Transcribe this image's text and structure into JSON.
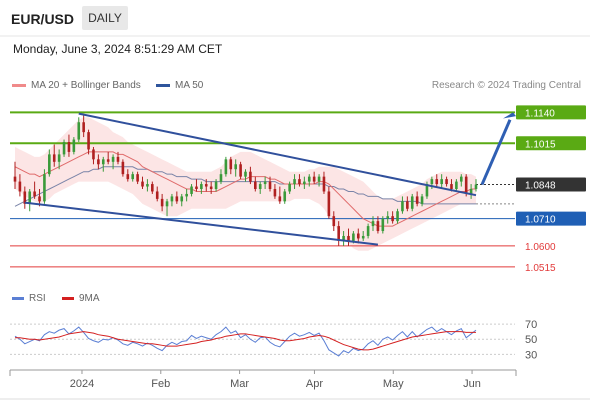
{
  "header": {
    "symbol": "EUR/USD",
    "timeframe": "DAILY"
  },
  "timestamp": "Monday, June 3, 2024 8:51:29 AM CET",
  "legend": {
    "ma20": "MA 20 + Bollinger Bands",
    "ma50": "MA 50",
    "credit": "Research © 2024 Trading Central"
  },
  "rsi_legend": {
    "rsi": "RSI",
    "ma9": "9MA"
  },
  "colors": {
    "green": "#5aaa14",
    "blue": "#1f5fb5",
    "red": "#e23a3a",
    "dark": "#333333",
    "trendline": "#30509c"
  },
  "chart_data": [
    {
      "type": "candlestick",
      "x_ticks": [
        "2024",
        "Feb",
        "Mar",
        "Apr",
        "May",
        "Jun"
      ],
      "levels": [
        {
          "label": "1.1140",
          "value": 1.114,
          "color": "#5aaa14",
          "style": "resistance"
        },
        {
          "label": "1.1015",
          "value": 1.1015,
          "color": "#5aaa14",
          "style": "resistance"
        },
        {
          "label": "1.0848",
          "value": 1.0848,
          "color": "#333333",
          "style": "last"
        },
        {
          "label": "1.0710",
          "value": 1.071,
          "color": "#1f5fb5",
          "style": "pivot"
        },
        {
          "label": "1.0600",
          "value": 1.06,
          "color": "#e23a3a",
          "style": "support"
        },
        {
          "label": "1.0515",
          "value": 1.0515,
          "color": "#e23a3a",
          "style": "support"
        }
      ],
      "ylim": [
        1.047,
        1.119
      ],
      "candles": [
        [
          1.088,
          1.094,
          1.083,
          1.086
        ],
        [
          1.086,
          1.089,
          1.08,
          1.082
        ],
        [
          1.082,
          1.084,
          1.075,
          1.077
        ],
        [
          1.077,
          1.083,
          1.074,
          1.082
        ],
        [
          1.082,
          1.086,
          1.079,
          1.08
        ],
        [
          1.08,
          1.083,
          1.076,
          1.078
        ],
        [
          1.078,
          1.091,
          1.077,
          1.089
        ],
        [
          1.089,
          1.099,
          1.088,
          1.097
        ],
        [
          1.097,
          1.101,
          1.092,
          1.094
        ],
        [
          1.094,
          1.099,
          1.091,
          1.097
        ],
        [
          1.097,
          1.103,
          1.096,
          1.102
        ],
        [
          1.102,
          1.105,
          1.096,
          1.098
        ],
        [
          1.098,
          1.104,
          1.097,
          1.103
        ],
        [
          1.103,
          1.112,
          1.102,
          1.11
        ],
        [
          1.11,
          1.113,
          1.104,
          1.106
        ],
        [
          1.106,
          1.107,
          1.097,
          1.099
        ],
        [
          1.099,
          1.1,
          1.093,
          1.095
        ],
        [
          1.095,
          1.097,
          1.091,
          1.093
        ],
        [
          1.093,
          1.096,
          1.09,
          1.095
        ],
        [
          1.095,
          1.098,
          1.093,
          1.094
        ],
        [
          1.094,
          1.097,
          1.091,
          1.096
        ],
        [
          1.096,
          1.098,
          1.093,
          1.094
        ],
        [
          1.094,
          1.095,
          1.088,
          1.089
        ],
        [
          1.089,
          1.091,
          1.086,
          1.087
        ],
        [
          1.087,
          1.09,
          1.086,
          1.089
        ],
        [
          1.089,
          1.09,
          1.085,
          1.086
        ],
        [
          1.086,
          1.088,
          1.083,
          1.084
        ],
        [
          1.084,
          1.087,
          1.082,
          1.085
        ],
        [
          1.085,
          1.086,
          1.081,
          1.082
        ],
        [
          1.082,
          1.084,
          1.078,
          1.079
        ],
        [
          1.079,
          1.081,
          1.074,
          1.076
        ],
        [
          1.076,
          1.079,
          1.072,
          1.078
        ],
        [
          1.078,
          1.081,
          1.076,
          1.08
        ],
        [
          1.08,
          1.082,
          1.077,
          1.078
        ],
        [
          1.078,
          1.081,
          1.076,
          1.08
        ],
        [
          1.08,
          1.083,
          1.078,
          1.081
        ],
        [
          1.081,
          1.085,
          1.08,
          1.084
        ],
        [
          1.084,
          1.087,
          1.082,
          1.083
        ],
        [
          1.083,
          1.086,
          1.081,
          1.085
        ],
        [
          1.085,
          1.087,
          1.082,
          1.084
        ],
        [
          1.084,
          1.086,
          1.081,
          1.083
        ],
        [
          1.083,
          1.087,
          1.082,
          1.086
        ],
        [
          1.086,
          1.091,
          1.085,
          1.089
        ],
        [
          1.089,
          1.096,
          1.088,
          1.095
        ],
        [
          1.095,
          1.096,
          1.089,
          1.091
        ],
        [
          1.091,
          1.095,
          1.088,
          1.093
        ],
        [
          1.093,
          1.094,
          1.087,
          1.088
        ],
        [
          1.088,
          1.091,
          1.086,
          1.09
        ],
        [
          1.09,
          1.092,
          1.085,
          1.086
        ],
        [
          1.086,
          1.088,
          1.082,
          1.083
        ],
        [
          1.083,
          1.086,
          1.081,
          1.085
        ],
        [
          1.085,
          1.088,
          1.083,
          1.086
        ],
        [
          1.086,
          1.088,
          1.082,
          1.083
        ],
        [
          1.083,
          1.085,
          1.079,
          1.08
        ],
        [
          1.08,
          1.084,
          1.077,
          1.078
        ],
        [
          1.078,
          1.083,
          1.077,
          1.082
        ],
        [
          1.082,
          1.086,
          1.081,
          1.085
        ],
        [
          1.085,
          1.089,
          1.083,
          1.087
        ],
        [
          1.087,
          1.089,
          1.084,
          1.085
        ],
        [
          1.085,
          1.088,
          1.083,
          1.086
        ],
        [
          1.086,
          1.089,
          1.084,
          1.088
        ],
        [
          1.088,
          1.09,
          1.085,
          1.086
        ],
        [
          1.086,
          1.089,
          1.084,
          1.088
        ],
        [
          1.088,
          1.09,
          1.081,
          1.082
        ],
        [
          1.082,
          1.084,
          1.071,
          1.072
        ],
        [
          1.072,
          1.074,
          1.066,
          1.068
        ],
        [
          1.068,
          1.07,
          1.06,
          1.062
        ],
        [
          1.062,
          1.066,
          1.06,
          1.064
        ],
        [
          1.064,
          1.067,
          1.06,
          1.062
        ],
        [
          1.062,
          1.066,
          1.061,
          1.065
        ],
        [
          1.065,
          1.067,
          1.061,
          1.063
        ],
        [
          1.063,
          1.066,
          1.062,
          1.064
        ],
        [
          1.064,
          1.069,
          1.063,
          1.068
        ],
        [
          1.068,
          1.072,
          1.066,
          1.07
        ],
        [
          1.07,
          1.072,
          1.065,
          1.066
        ],
        [
          1.066,
          1.072,
          1.065,
          1.071
        ],
        [
          1.071,
          1.074,
          1.069,
          1.072
        ],
        [
          1.072,
          1.074,
          1.069,
          1.07
        ],
        [
          1.07,
          1.075,
          1.069,
          1.074
        ],
        [
          1.074,
          1.08,
          1.073,
          1.078
        ],
        [
          1.078,
          1.08,
          1.074,
          1.075
        ],
        [
          1.075,
          1.081,
          1.074,
          1.08
        ],
        [
          1.08,
          1.082,
          1.076,
          1.077
        ],
        [
          1.077,
          1.081,
          1.076,
          1.08
        ],
        [
          1.08,
          1.086,
          1.079,
          1.085
        ],
        [
          1.085,
          1.088,
          1.083,
          1.087
        ],
        [
          1.087,
          1.089,
          1.084,
          1.085
        ],
        [
          1.085,
          1.089,
          1.083,
          1.087
        ],
        [
          1.087,
          1.088,
          1.084,
          1.085
        ],
        [
          1.085,
          1.087,
          1.082,
          1.083
        ],
        [
          1.083,
          1.087,
          1.082,
          1.086
        ],
        [
          1.086,
          1.089,
          1.084,
          1.088
        ],
        [
          1.088,
          1.089,
          1.08,
          1.081
        ],
        [
          1.081,
          1.085,
          1.079,
          1.083
        ],
        [
          1.083,
          1.087,
          1.082,
          1.0848
        ]
      ],
      "ma20": [
        1.092,
        1.091,
        1.09,
        1.089,
        1.089,
        1.088,
        1.089,
        1.09,
        1.091,
        1.092,
        1.093,
        1.094,
        1.095,
        1.096,
        1.097,
        1.098,
        1.098,
        1.098,
        1.098,
        1.098,
        1.098,
        1.097,
        1.097,
        1.096,
        1.095,
        1.094,
        1.092,
        1.091,
        1.09,
        1.089,
        1.088,
        1.087,
        1.086,
        1.085,
        1.084,
        1.083,
        1.083,
        1.082,
        1.082,
        1.082,
        1.082,
        1.082,
        1.083,
        1.084,
        1.085,
        1.086,
        1.087,
        1.087,
        1.088,
        1.088,
        1.088,
        1.088,
        1.087,
        1.087,
        1.086,
        1.085,
        1.085,
        1.085,
        1.085,
        1.085,
        1.085,
        1.085,
        1.086,
        1.086,
        1.085,
        1.083,
        1.081,
        1.079,
        1.077,
        1.075,
        1.073,
        1.071,
        1.07,
        1.069,
        1.068,
        1.068,
        1.068,
        1.068,
        1.069,
        1.07,
        1.071,
        1.072,
        1.073,
        1.074,
        1.075,
        1.076,
        1.077,
        1.078,
        1.079,
        1.08,
        1.081,
        1.082,
        1.082,
        1.083,
        1.083
      ],
      "bb_upper": [
        1.1,
        1.099,
        1.098,
        1.097,
        1.096,
        1.096,
        1.097,
        1.099,
        1.101,
        1.103,
        1.105,
        1.107,
        1.109,
        1.111,
        1.112,
        1.112,
        1.111,
        1.11,
        1.109,
        1.108,
        1.106,
        1.105,
        1.104,
        1.102,
        1.101,
        1.1,
        1.099,
        1.098,
        1.097,
        1.096,
        1.095,
        1.094,
        1.093,
        1.092,
        1.091,
        1.09,
        1.09,
        1.09,
        1.09,
        1.09,
        1.09,
        1.091,
        1.092,
        1.094,
        1.096,
        1.097,
        1.098,
        1.098,
        1.098,
        1.097,
        1.096,
        1.095,
        1.094,
        1.093,
        1.092,
        1.091,
        1.09,
        1.09,
        1.09,
        1.09,
        1.091,
        1.091,
        1.092,
        1.092,
        1.092,
        1.092,
        1.091,
        1.09,
        1.089,
        1.088,
        1.087,
        1.086,
        1.084,
        1.082,
        1.08,
        1.079,
        1.079,
        1.079,
        1.08,
        1.081,
        1.082,
        1.083,
        1.084,
        1.085,
        1.087,
        1.088,
        1.089,
        1.09,
        1.09,
        1.09,
        1.09,
        1.09,
        1.089,
        1.089,
        1.088
      ],
      "bb_lower": [
        1.083,
        1.082,
        1.08,
        1.079,
        1.078,
        1.077,
        1.078,
        1.079,
        1.081,
        1.082,
        1.083,
        1.084,
        1.085,
        1.086,
        1.086,
        1.086,
        1.086,
        1.086,
        1.086,
        1.086,
        1.085,
        1.084,
        1.083,
        1.082,
        1.081,
        1.079,
        1.077,
        1.076,
        1.075,
        1.074,
        1.073,
        1.072,
        1.072,
        1.072,
        1.073,
        1.074,
        1.075,
        1.075,
        1.075,
        1.075,
        1.075,
        1.075,
        1.075,
        1.075,
        1.076,
        1.077,
        1.078,
        1.078,
        1.078,
        1.078,
        1.078,
        1.078,
        1.078,
        1.078,
        1.078,
        1.078,
        1.078,
        1.079,
        1.079,
        1.079,
        1.079,
        1.078,
        1.077,
        1.075,
        1.072,
        1.069,
        1.066,
        1.063,
        1.061,
        1.059,
        1.058,
        1.058,
        1.058,
        1.059,
        1.06,
        1.061,
        1.062,
        1.063,
        1.064,
        1.065,
        1.066,
        1.067,
        1.068,
        1.069,
        1.07,
        1.071,
        1.072,
        1.073,
        1.074,
        1.075,
        1.076,
        1.077,
        1.077,
        1.077,
        1.077
      ],
      "ma50": [
        1.076,
        1.077,
        1.078,
        1.079,
        1.08,
        1.081,
        1.082,
        1.083,
        1.084,
        1.085,
        1.086,
        1.087,
        1.088,
        1.089,
        1.09,
        1.09,
        1.091,
        1.091,
        1.092,
        1.092,
        1.092,
        1.092,
        1.092,
        1.092,
        1.092,
        1.091,
        1.091,
        1.091,
        1.09,
        1.09,
        1.09,
        1.089,
        1.089,
        1.088,
        1.088,
        1.088,
        1.087,
        1.087,
        1.087,
        1.086,
        1.086,
        1.086,
        1.086,
        1.086,
        1.086,
        1.086,
        1.086,
        1.086,
        1.086,
        1.086,
        1.086,
        1.086,
        1.086,
        1.086,
        1.085,
        1.085,
        1.085,
        1.085,
        1.085,
        1.085,
        1.085,
        1.085,
        1.085,
        1.085,
        1.084,
        1.084,
        1.083,
        1.083,
        1.082,
        1.082,
        1.081,
        1.081,
        1.08,
        1.08,
        1.08,
        1.079,
        1.079,
        1.079,
        1.078,
        1.078,
        1.078,
        1.078,
        1.078,
        1.077,
        1.077,
        1.077,
        1.077,
        1.077,
        1.077,
        1.077,
        1.077,
        1.077,
        1.077,
        1.077,
        1.077
      ]
    },
    {
      "type": "line",
      "title": "RSI",
      "y_ticks": [
        70,
        50,
        30
      ],
      "ylim": [
        20,
        78
      ],
      "series": [
        {
          "name": "RSI",
          "color": "#5b7fd4",
          "values": [
            54,
            50,
            44,
            47,
            50,
            48,
            56,
            60,
            58,
            62,
            64,
            57,
            61,
            66,
            59,
            51,
            48,
            46,
            50,
            49,
            52,
            49,
            44,
            42,
            46,
            44,
            41,
            45,
            42,
            38,
            35,
            42,
            46,
            43,
            47,
            48,
            55,
            51,
            54,
            52,
            50,
            56,
            60,
            66,
            58,
            61,
            52,
            56,
            50,
            46,
            52,
            53,
            46,
            42,
            40,
            47,
            54,
            58,
            54,
            56,
            59,
            55,
            58,
            48,
            36,
            32,
            28,
            35,
            32,
            38,
            35,
            37,
            44,
            48,
            42,
            50,
            53,
            49,
            55,
            60,
            53,
            60,
            53,
            58,
            63,
            66,
            60,
            64,
            60,
            56,
            61,
            64,
            52,
            57,
            62
          ]
        },
        {
          "name": "9MA",
          "color": "#d42020",
          "values": [
            52,
            52,
            51,
            50,
            50,
            49,
            50,
            51,
            52,
            53,
            55,
            57,
            58,
            59,
            60,
            59,
            58,
            56,
            55,
            54,
            52,
            50,
            49,
            48,
            47,
            46,
            45,
            44,
            44,
            43,
            42,
            41,
            41,
            41,
            42,
            43,
            44,
            45,
            47,
            48,
            49,
            51,
            52,
            54,
            55,
            56,
            57,
            57,
            56,
            55,
            54,
            53,
            52,
            51,
            49,
            48,
            48,
            49,
            50,
            51,
            53,
            54,
            55,
            54,
            52,
            49,
            46,
            43,
            41,
            39,
            37,
            36,
            36,
            37,
            39,
            41,
            43,
            45,
            47,
            49,
            51,
            53,
            54,
            55,
            56,
            57,
            58,
            59,
            60,
            60,
            60,
            60,
            59,
            59,
            59
          ]
        }
      ]
    }
  ]
}
